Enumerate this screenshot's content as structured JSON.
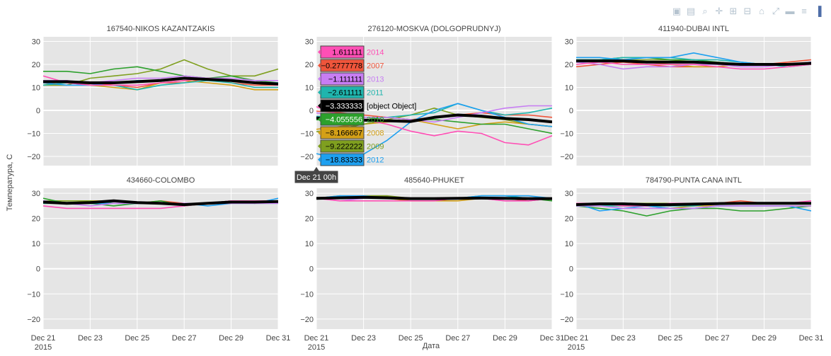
{
  "toolbar": {
    "buttons": [
      {
        "name": "camera-icon",
        "glyph": "▣"
      },
      {
        "name": "save-icon",
        "glyph": "▤"
      },
      {
        "name": "zoom-icon",
        "glyph": "⌕"
      },
      {
        "name": "pan-icon",
        "glyph": "✛"
      },
      {
        "name": "zoom-in-icon",
        "glyph": "⊞"
      },
      {
        "name": "zoom-out-icon",
        "glyph": "⊟"
      },
      {
        "name": "home-icon",
        "glyph": "⌂"
      },
      {
        "name": "autoscale-icon",
        "glyph": "⤢"
      },
      {
        "name": "spike-lines-icon",
        "glyph": "▬"
      },
      {
        "name": "compare-hover-icon",
        "glyph": "≡"
      },
      {
        "name": "plotly-logo-icon",
        "glyph": "▐"
      }
    ]
  },
  "chart_data": {
    "type": "line",
    "ylabel": "Температура, С",
    "xlabel": "Дата",
    "x": [
      "Dec 21",
      "Dec 22",
      "Dec 23",
      "Dec 24",
      "Dec 25",
      "Dec 26",
      "Dec 27",
      "Dec 28",
      "Dec 29",
      "Dec 30",
      "Dec 31"
    ],
    "xticks": [
      "Dec 21",
      "Dec 23",
      "Dec 25",
      "Dec 27",
      "Dec 29",
      "Dec 31"
    ],
    "xtick_year": "2015",
    "ylim": [
      -24,
      32
    ],
    "yticks": [
      -20,
      -10,
      0,
      10,
      20,
      30
    ],
    "grid": true,
    "series_colors": {
      "2007": "#EF553B",
      "2008": "#D4A017",
      "2009": "#7F9F1F",
      "2010": "#2CA02C",
      "2011": "#1FB5AD",
      "2012": "#1EA0F0",
      "2013": "#C77DF3",
      "2014": "#FF4FB5",
      "mean": "#000000"
    },
    "panels": [
      {
        "title": "167540-NIKOS KAZANTZAKIS",
        "series": [
          {
            "year": "2007",
            "values": [
              13,
              12,
              12,
              11,
              10,
              12,
              12,
              14,
              12,
              11,
              11
            ]
          },
          {
            "year": "2008",
            "values": [
              11,
              13,
              11,
              10,
              9,
              12,
              13,
              12,
              11,
              9,
              9
            ]
          },
          {
            "year": "2009",
            "values": [
              11,
              11,
              14,
              15,
              16,
              18,
              22,
              18,
              15,
              15,
              18
            ]
          },
          {
            "year": "2010",
            "values": [
              17,
              17,
              16,
              18,
              19,
              17,
              15,
              14,
              15,
              13,
              12
            ]
          },
          {
            "year": "2011",
            "values": [
              11,
              12,
              11,
              11,
              9,
              11,
              12,
              13,
              12,
              10,
              10
            ]
          },
          {
            "year": "2012",
            "values": [
              12,
              11,
              11,
              12,
              13,
              13,
              14,
              14,
              13,
              12,
              12
            ]
          },
          {
            "year": "2013",
            "values": [
              13,
              13,
              12,
              13,
              14,
              14,
              15,
              14,
              14,
              13,
              13
            ]
          },
          {
            "year": "2014",
            "values": [
              15,
              12,
              11,
              11,
              11,
              12,
              13,
              14,
              13,
              12,
              11
            ]
          },
          {
            "year": "mean",
            "values": [
              12.5,
              12.5,
              12,
              12,
              12.5,
              13,
              14,
              13.5,
              13,
              12,
              11.5
            ]
          }
        ]
      },
      {
        "title": "276120-MOSKVA (DOLGOPRUDNYJ)",
        "series": [
          {
            "year": "2007",
            "values": [
              -0.3,
              -1,
              -2,
              -3,
              -4,
              -3,
              -2,
              -1,
              -2,
              -2,
              -3
            ]
          },
          {
            "year": "2008",
            "values": [
              -8.2,
              -7,
              -6,
              -5,
              -4,
              -6,
              -8,
              -6,
              -5,
              -6,
              -7
            ]
          },
          {
            "year": "2009",
            "values": [
              -9.2,
              -8,
              -6,
              -4,
              -2,
              1,
              -2,
              -3,
              -4,
              -6,
              -7
            ]
          },
          {
            "year": "2010",
            "values": [
              -4.1,
              -4,
              -4,
              -3,
              -4,
              -4,
              -5,
              -6,
              -6,
              -8,
              -10
            ]
          },
          {
            "year": "2011",
            "values": [
              -2.6,
              -3,
              -3,
              -3,
              -2,
              -1,
              3,
              0,
              -2,
              -1,
              1
            ]
          },
          {
            "year": "2012",
            "values": [
              -18.8,
              -21,
              -19,
              -13,
              -5,
              0,
              3,
              0,
              -3,
              -6,
              -7
            ]
          },
          {
            "year": "2013",
            "values": [
              -1.1,
              -2,
              -3,
              -3,
              -4,
              -5,
              -3,
              -1,
              1,
              2,
              2
            ]
          },
          {
            "year": "2014",
            "values": [
              1.6,
              -2,
              -4,
              -6,
              -9,
              -11,
              -9,
              -10,
              -14,
              -15,
              -11
            ]
          },
          {
            "year": "mean",
            "values": [
              -3.3,
              -3.8,
              -4.2,
              -4.5,
              -4.8,
              -3,
              -2,
              -2.5,
              -3.5,
              -4,
              -5
            ]
          }
        ]
      },
      {
        "title": "411940-DUBAI INTL",
        "series": [
          {
            "year": "2007",
            "values": [
              19,
              20,
              21,
              20,
              19,
              19,
              19,
              20,
              20,
              21,
              22
            ]
          },
          {
            "year": "2008",
            "values": [
              22,
              21,
              22,
              21,
              20,
              19,
              19,
              20,
              20,
              20,
              21
            ]
          },
          {
            "year": "2009",
            "values": [
              21,
              22,
              22,
              22,
              22,
              21,
              21,
              20,
              20,
              20,
              20
            ]
          },
          {
            "year": "2010",
            "values": [
              22,
              22,
              23,
              23,
              22,
              22,
              21,
              20,
              20,
              20,
              20
            ]
          },
          {
            "year": "2011",
            "values": [
              22,
              22,
              23,
              23,
              23,
              22,
              22,
              21,
              20,
              19,
              20
            ]
          },
          {
            "year": "2012",
            "values": [
              23,
              23,
              22,
              23,
              23,
              25,
              23,
              21,
              20,
              20,
              21
            ]
          },
          {
            "year": "2013",
            "values": [
              21,
              20,
              18,
              19,
              19,
              20,
              20,
              19,
              19,
              20,
              21
            ]
          },
          {
            "year": "2014",
            "values": [
              20,
              21,
              20,
              20,
              20,
              20,
              19,
              18,
              18,
              19,
              20
            ]
          },
          {
            "year": "mean",
            "values": [
              21.5,
              21.5,
              21.5,
              21,
              21,
              21,
              20.5,
              20,
              20,
              20,
              20.5
            ]
          }
        ]
      },
      {
        "title": "434660-COLOMBO",
        "series": [
          {
            "year": "2007",
            "values": [
              27,
              26,
              26,
              26,
              26,
              27,
              26,
              26,
              26,
              27,
              27
            ]
          },
          {
            "year": "2008",
            "values": [
              26,
              26,
              27,
              27,
              26,
              26,
              26,
              26,
              27,
              27,
              27
            ]
          },
          {
            "year": "2009",
            "values": [
              27,
              27,
              27,
              26,
              26,
              26,
              26,
              26,
              27,
              27,
              27
            ]
          },
          {
            "year": "2010",
            "values": [
              28,
              26,
              26,
              25,
              26,
              27,
              25,
              26,
              27,
              26,
              27
            ]
          },
          {
            "year": "2011",
            "values": [
              26,
              26,
              26,
              26,
              26,
              26,
              26,
              26,
              27,
              26,
              26
            ]
          },
          {
            "year": "2012",
            "values": [
              27,
              26,
              26,
              26,
              26,
              26,
              26,
              25,
              26,
              26,
              28
            ]
          },
          {
            "year": "2013",
            "values": [
              27,
              26,
              25,
              26,
              26,
              26,
              26,
              26,
              26,
              26,
              26
            ]
          },
          {
            "year": "2014",
            "values": [
              25,
              24,
              24,
              24,
              24,
              24,
              25,
              26,
              27,
              27,
              27
            ]
          },
          {
            "year": "mean",
            "values": [
              26.5,
              26,
              26.3,
              27,
              26.3,
              26,
              25.5,
              26,
              26.5,
              26.5,
              26.7
            ]
          }
        ]
      },
      {
        "title": "485640-PHUKET",
        "series": [
          {
            "year": "2007",
            "values": [
              28,
              28,
              28,
              28,
              28,
              28,
              28,
              28,
              28,
              27,
              28
            ]
          },
          {
            "year": "2008",
            "values": [
              28,
              28,
              28,
              28,
              27,
              27,
              27,
              28,
              28,
              28,
              28
            ]
          },
          {
            "year": "2009",
            "values": [
              28,
              28,
              29,
              29,
              28,
              28,
              28,
              28,
              28,
              28,
              28
            ]
          },
          {
            "year": "2010",
            "values": [
              28,
              28,
              28,
              28,
              28,
              28,
              28,
              28,
              28,
              28,
              27
            ]
          },
          {
            "year": "2011",
            "values": [
              28,
              29,
              28,
              28,
              28,
              28,
              28,
              29,
              29,
              28,
              28
            ]
          },
          {
            "year": "2012",
            "values": [
              28,
              29,
              29,
              28,
              28,
              28,
              28,
              29,
              29,
              29,
              28
            ]
          },
          {
            "year": "2013",
            "values": [
              28,
              27,
              28,
              28,
              28,
              28,
              28,
              28,
              27,
              27,
              28
            ]
          },
          {
            "year": "2014",
            "values": [
              28,
              27,
              27,
              27,
              27,
              27,
              28,
              28,
              27,
              27,
              28
            ]
          },
          {
            "year": "mean",
            "values": [
              28,
              28.2,
              28.4,
              28.2,
              27.9,
              27.9,
              28,
              28.1,
              28,
              27.9,
              27.9
            ]
          }
        ]
      },
      {
        "title": "784790-PUNTA CANA INTL",
        "series": [
          {
            "year": "2007",
            "values": [
              26,
              26,
              25,
              25,
              25,
              26,
              26,
              27,
              26,
              26,
              26
            ]
          },
          {
            "year": "2008",
            "values": [
              25,
              25,
              25,
              25,
              24,
              25,
              25,
              25,
              25,
              25,
              25
            ]
          },
          {
            "year": "2009",
            "values": [
              26,
              25,
              26,
              26,
              26,
              26,
              26,
              26,
              26,
              26,
              26
            ]
          },
          {
            "year": "2010",
            "values": [
              25,
              24,
              23,
              21,
              23,
              24,
              24,
              23,
              23,
              24,
              25
            ]
          },
          {
            "year": "2011",
            "values": [
              25,
              25,
              25,
              25,
              25,
              25,
              26,
              26,
              26,
              26,
              26
            ]
          },
          {
            "year": "2012",
            "values": [
              26,
              23,
              24,
              25,
              24,
              24,
              25,
              25,
              25,
              25,
              23
            ]
          },
          {
            "year": "2013",
            "values": [
              25,
              25,
              24,
              24,
              24,
              24,
              25,
              25,
              25,
              25,
              25
            ]
          },
          {
            "year": "2014",
            "values": [
              26,
              26,
              25,
              25,
              26,
              26,
              26,
              26,
              26,
              26,
              27
            ]
          },
          {
            "year": "mean",
            "values": [
              25.5,
              25.8,
              25.8,
              25.5,
              25.5,
              25.7,
              25.9,
              26,
              26,
              26,
              26
            ]
          }
        ]
      }
    ],
    "hover": {
      "panel_index": 1,
      "x_label": "Dec 21 00h",
      "items": [
        {
          "value": "1.611111",
          "label": "2014",
          "color": "#FF4FB5",
          "text_color": "#000000"
        },
        {
          "value": "−0.2777778",
          "label": "2007",
          "color": "#EF553B",
          "text_color": "#000000"
        },
        {
          "value": "−1.111111",
          "label": "2013",
          "color": "#C77DF3",
          "text_color": "#000000"
        },
        {
          "value": "−2.611111",
          "label": "2011",
          "color": "#1FB5AD",
          "text_color": "#000000"
        },
        {
          "value": "−3.333333",
          "label": "[object Object]",
          "color": "#000000",
          "text_color": "#ffffff"
        },
        {
          "value": "−4.055556",
          "label": "2010",
          "color": "#2CA02C",
          "text_color": "#ffffff"
        },
        {
          "value": "−8.166667",
          "label": "2008",
          "color": "#D4A017",
          "text_color": "#000000"
        },
        {
          "value": "−9.222222",
          "label": "2009",
          "color": "#7F9F1F",
          "text_color": "#000000"
        },
        {
          "value": "−18.83333",
          "label": "2012",
          "color": "#1EA0F0",
          "text_color": "#000000"
        }
      ]
    }
  }
}
